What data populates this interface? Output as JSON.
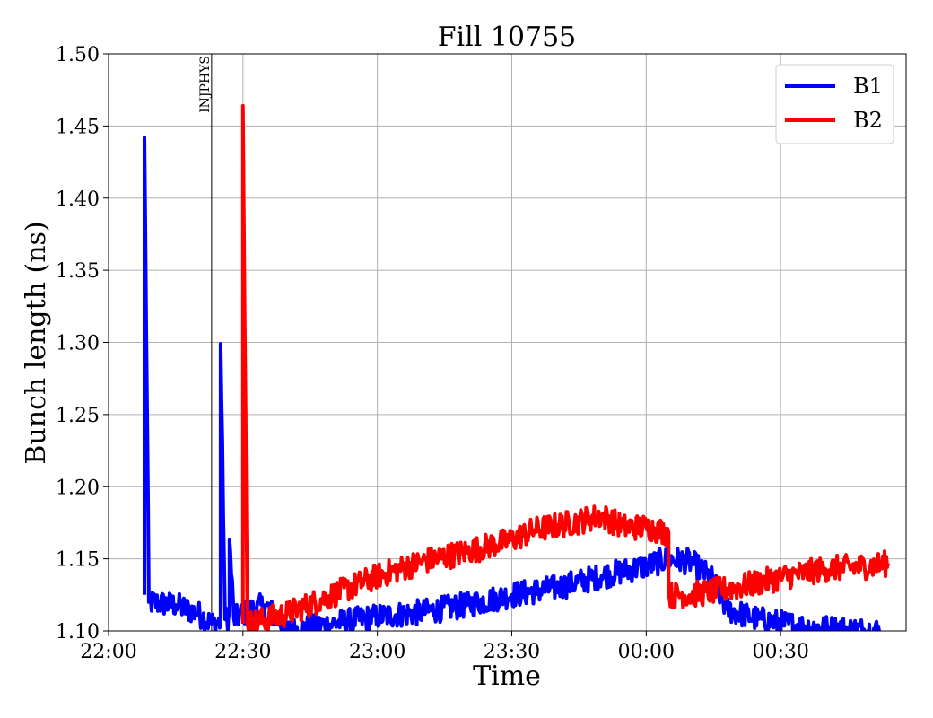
{
  "chart_data": {
    "type": "line",
    "title": "Fill 10755",
    "xlabel": "Time",
    "ylabel": "Bunch length (ns)",
    "xlim": [
      "22:00",
      "00:58"
    ],
    "ylim": [
      1.1,
      1.5
    ],
    "grid": true,
    "legend_position": "top-right",
    "x_ticks": [
      "22:00",
      "22:30",
      "23:00",
      "23:30",
      "00:00",
      "00:30"
    ],
    "y_ticks": [
      "1.10",
      "1.15",
      "1.20",
      "1.25",
      "1.30",
      "1.35",
      "1.40",
      "1.45",
      "1.50"
    ],
    "annotations": [
      {
        "label": "INJPHYS",
        "x": "22:23"
      }
    ],
    "series": [
      {
        "name": "B1",
        "color": "#0000ff",
        "noise": 0.009,
        "points": [
          [
            "22:08",
            1.125
          ],
          [
            "22:08",
            1.442
          ],
          [
            "22:09",
            1.12
          ],
          [
            "22:15",
            1.118
          ],
          [
            "22:20",
            1.112
          ],
          [
            "22:23",
            1.105
          ],
          [
            "22:25",
            1.106
          ],
          [
            "22:25",
            1.299
          ],
          [
            "22:26",
            1.108
          ],
          [
            "22:27",
            1.11
          ],
          [
            "22:27",
            1.163
          ],
          [
            "22:28",
            1.108
          ],
          [
            "22:30",
            1.112
          ],
          [
            "22:35",
            1.118
          ],
          [
            "22:40",
            1.1
          ],
          [
            "22:50",
            1.105
          ],
          [
            "23:00",
            1.11
          ],
          [
            "23:10",
            1.113
          ],
          [
            "23:20",
            1.118
          ],
          [
            "23:30",
            1.125
          ],
          [
            "23:40",
            1.13
          ],
          [
            "23:50",
            1.138
          ],
          [
            "00:00",
            1.145
          ],
          [
            "00:05",
            1.15
          ],
          [
            "00:10",
            1.148
          ],
          [
            "00:15",
            1.135
          ],
          [
            "00:18",
            1.115
          ],
          [
            "00:25",
            1.108
          ],
          [
            "00:35",
            1.103
          ],
          [
            "00:45",
            1.101
          ],
          [
            "00:52",
            1.1
          ]
        ]
      },
      {
        "name": "B2",
        "color": "#ff0000",
        "noise": 0.009,
        "points": [
          [
            "22:30",
            1.105
          ],
          [
            "22:30",
            1.464
          ],
          [
            "22:31",
            1.105
          ],
          [
            "22:40",
            1.112
          ],
          [
            "22:50",
            1.125
          ],
          [
            "23:00",
            1.138
          ],
          [
            "23:10",
            1.148
          ],
          [
            "23:20",
            1.155
          ],
          [
            "23:30",
            1.163
          ],
          [
            "23:35",
            1.17
          ],
          [
            "23:45",
            1.176
          ],
          [
            "23:50",
            1.18
          ],
          [
            "23:55",
            1.172
          ],
          [
            "00:00",
            1.172
          ],
          [
            "00:05",
            1.168
          ],
          [
            "00:05",
            1.125
          ],
          [
            "00:10",
            1.125
          ],
          [
            "00:20",
            1.13
          ],
          [
            "00:30",
            1.137
          ],
          [
            "00:40",
            1.143
          ],
          [
            "00:50",
            1.145
          ],
          [
            "00:54",
            1.147
          ]
        ]
      }
    ]
  }
}
